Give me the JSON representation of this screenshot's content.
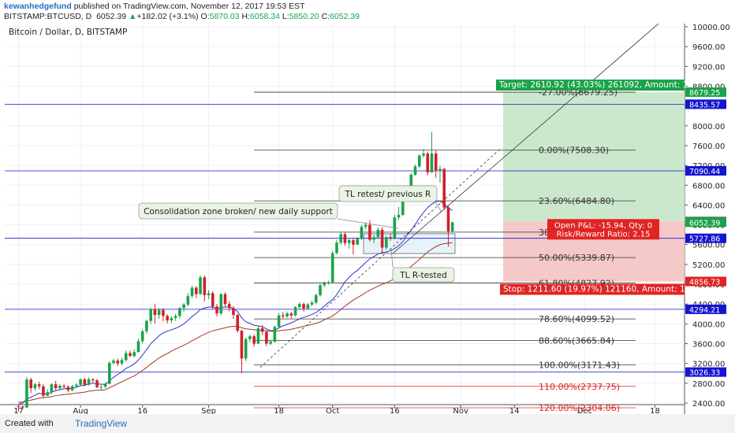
{
  "header": {
    "author": "kewanhedgefund",
    "published": "published on TradingView.com, November 12, 2017 19:53 EST",
    "symbol": "BITSTAMP:BTCUSD, D",
    "last": "6052.39",
    "change_arrow": "▲",
    "change": "+182.02 (+3.1%)",
    "o_label": "O:",
    "o": "5870.03",
    "h_label": "H:",
    "h": "6058.34",
    "l_label": "L:",
    "l": "5850.20",
    "c_label": "C:",
    "c": "6052.39"
  },
  "footer": {
    "created_with": "Created with",
    "brand": "TradingView"
  },
  "chart_data": {
    "type": "candlestick",
    "title": "Bitcoin / Dollar, D, BITSTAMP",
    "y_axis": {
      "min": 2200,
      "max": 10200,
      "position": "right",
      "ticks": [
        "10000.00",
        "9600.00",
        "9200.00",
        "8800.00",
        "8400.00",
        "8000.00",
        "7600.00",
        "7200.00",
        "6800.00",
        "6400.00",
        "6000.00",
        "5600.00",
        "5200.00",
        "4800.00",
        "4400.00",
        "4000.00",
        "3600.00",
        "3200.00",
        "2800.00",
        "2400.00"
      ],
      "tick_values": [
        10000,
        9600,
        9200,
        8800,
        8400,
        8000,
        7600,
        7200,
        6800,
        6400,
        6000,
        5600,
        5200,
        4800,
        4400,
        4000,
        3600,
        3200,
        2800,
        2400
      ]
    },
    "x_axis": {
      "labels": [
        "17",
        "Aug",
        "16",
        "Sep",
        "18",
        "Oct",
        "16",
        "Nov",
        "14",
        "Dec",
        "18"
      ],
      "dates": [
        "2017-07-17",
        "2017-08-01",
        "2017-08-16",
        "2017-09-01",
        "2017-09-18",
        "2017-10-01",
        "2017-10-16",
        "2017-11-01",
        "2017-11-14",
        "2017-12-01",
        "2017-12-18"
      ]
    },
    "horizontal_levels": [
      {
        "value": 8435.57,
        "label": "8435.57",
        "color": "#1515d0"
      },
      {
        "value": 7090.44,
        "label": "7090.44",
        "color": "#1515d0"
      },
      {
        "value": 5727.86,
        "label": "5727.86",
        "color": "#1515d0"
      },
      {
        "value": 4294.21,
        "label": "4294.21",
        "color": "#1515d0"
      },
      {
        "value": 3026.33,
        "label": "3026.33",
        "color": "#1515d0"
      }
    ],
    "price_tags": [
      {
        "value": 8679.25,
        "label": "8679.25",
        "color": "#1aa34a"
      },
      {
        "value": 6068.33,
        "label": "6068.33",
        "color": "#666666"
      },
      {
        "value": 6052.39,
        "label": "6052.39",
        "color": "#1aa34a"
      },
      {
        "value": 4856.73,
        "label": "4856.73",
        "color": "#e02424"
      }
    ],
    "fibonacci": [
      {
        "value": 8679.25,
        "label": "-27.00%(8679.25)",
        "color": "#333333"
      },
      {
        "value": 7508.3,
        "label": "0.00%(7508.30)",
        "color": "#333333"
      },
      {
        "value": 6484.8,
        "label": "23.60%(6484.80)",
        "color": "#333333"
      },
      {
        "value": 5851.82,
        "label": "38.20%(5851.82)",
        "color": "#333333"
      },
      {
        "value": 5339.87,
        "label": "50.00%(5339.87)",
        "color": "#333333"
      },
      {
        "value": 4827.92,
        "label": "61.80%(4827.92)",
        "color": "#333333"
      },
      {
        "value": 4099.52,
        "label": "78.60%(4099.52)",
        "color": "#333333"
      },
      {
        "value": 3665.84,
        "label": "88.60%(3665.84)",
        "color": "#333333"
      },
      {
        "value": 3171.43,
        "label": "100.00%(3171.43)",
        "color": "#333333"
      },
      {
        "value": 2737.75,
        "label": "110.00%(2737.75)",
        "color": "#e02424"
      },
      {
        "value": 2304.06,
        "label": "120.00%(2304.06)",
        "color": "#e02424"
      }
    ],
    "position": {
      "entry": 6068.33,
      "target": 8679.25,
      "stop": 4856.73,
      "target_label": "Target: 2610.92 (43.03%) 261092, Amount: 1",
      "pnl_label": "Open P&L: -15.94, Qty: 0",
      "rr_label": "Risk/Reward Ratio: 2.15",
      "stop_label": "Stop: 1211.60 (19.97%) 121160, Amount: 10"
    },
    "annotations": [
      {
        "text": "Consolidation zone broken/ new daily support"
      },
      {
        "text": "TL retest/ previous R"
      },
      {
        "text": "TL R-tested"
      }
    ],
    "colors": {
      "up": "#1aa34a",
      "down": "#d0202a",
      "ema_fast": "#2b33c4",
      "ema_slow": "#a33a1a"
    },
    "candles": [
      [
        2335,
        2330,
        2350,
        2230
      ],
      [
        2330,
        2310,
        2345,
        2270
      ],
      [
        2310,
        2875,
        2930,
        2300
      ],
      [
        2875,
        2700,
        2910,
        2600
      ],
      [
        2700,
        2780,
        2810,
        2650
      ],
      [
        2780,
        2740,
        2830,
        2680
      ],
      [
        2740,
        2550,
        2780,
        2500
      ],
      [
        2550,
        2620,
        2680,
        2540
      ],
      [
        2620,
        2780,
        2800,
        2580
      ],
      [
        2780,
        2700,
        2850,
        2650
      ],
      [
        2700,
        2750,
        2780,
        2670
      ],
      [
        2750,
        2730,
        2790,
        2690
      ],
      [
        2730,
        2660,
        2760,
        2620
      ],
      [
        2660,
        2740,
        2770,
        2640
      ],
      [
        2740,
        2770,
        2800,
        2710
      ],
      [
        2770,
        2880,
        2900,
        2740
      ],
      [
        2880,
        2770,
        2910,
        2740
      ],
      [
        2770,
        2880,
        2920,
        2750
      ],
      [
        2880,
        2860,
        2900,
        2810
      ],
      [
        2860,
        2720,
        2890,
        2700
      ],
      [
        2720,
        2730,
        2760,
        2660
      ],
      [
        2730,
        2790,
        2810,
        2700
      ],
      [
        2790,
        3210,
        3250,
        2780
      ],
      [
        3210,
        3260,
        3300,
        3180
      ],
      [
        3260,
        3200,
        3300,
        3150
      ],
      [
        3200,
        3270,
        3310,
        3160
      ],
      [
        3270,
        3410,
        3460,
        3240
      ],
      [
        3410,
        3350,
        3460,
        3330
      ],
      [
        3350,
        3430,
        3480,
        3320
      ],
      [
        3430,
        3650,
        3700,
        3420
      ],
      [
        3650,
        3850,
        3890,
        3600
      ],
      [
        3850,
        4060,
        4090,
        3800
      ],
      [
        4060,
        4300,
        4330,
        4000
      ],
      [
        4300,
        4180,
        4400,
        4000
      ],
      [
        4180,
        4280,
        4320,
        4100
      ],
      [
        4280,
        4160,
        4320,
        4050
      ],
      [
        4160,
        4070,
        4200,
        4010
      ],
      [
        4070,
        4120,
        4160,
        4020
      ],
      [
        4120,
        4160,
        4200,
        4060
      ],
      [
        4160,
        4320,
        4340,
        4110
      ],
      [
        4320,
        4390,
        4420,
        4250
      ],
      [
        4390,
        4560,
        4620,
        4350
      ],
      [
        4560,
        4730,
        4770,
        4520
      ],
      [
        4730,
        4600,
        4760,
        4520
      ],
      [
        4600,
        4940,
        4980,
        4580
      ],
      [
        4940,
        4580,
        4980,
        4450
      ],
      [
        4580,
        4620,
        4680,
        4500
      ],
      [
        4620,
        4350,
        4660,
        4300
      ],
      [
        4350,
        4210,
        4400,
        4150
      ],
      [
        4210,
        4600,
        4620,
        4180
      ],
      [
        4600,
        4400,
        4640,
        4350
      ],
      [
        4400,
        4320,
        4460,
        4250
      ],
      [
        4320,
        4180,
        4360,
        4100
      ],
      [
        4180,
        3860,
        4200,
        3820
      ],
      [
        3860,
        3300,
        3880,
        3000
      ],
      [
        3300,
        3690,
        3730,
        3250
      ],
      [
        3690,
        3750,
        3780,
        3630
      ],
      [
        3750,
        3600,
        3790,
        3540
      ],
      [
        3600,
        3910,
        3960,
        3590
      ],
      [
        3910,
        3840,
        3980,
        3780
      ],
      [
        3840,
        3600,
        3870,
        3550
      ],
      [
        3600,
        3640,
        3680,
        3570
      ],
      [
        3640,
        3940,
        3960,
        3620
      ],
      [
        3940,
        4170,
        4220,
        3920
      ],
      [
        4170,
        4150,
        4240,
        4100
      ],
      [
        4150,
        4210,
        4250,
        4120
      ],
      [
        4210,
        4170,
        4240,
        4110
      ],
      [
        4170,
        4340,
        4360,
        4150
      ],
      [
        4340,
        4400,
        4440,
        4300
      ],
      [
        4400,
        4310,
        4430,
        4250
      ],
      [
        4310,
        4390,
        4420,
        4290
      ],
      [
        4390,
        4430,
        4470,
        4360
      ],
      [
        4430,
        4580,
        4610,
        4400
      ],
      [
        4580,
        4780,
        4810,
        4550
      ],
      [
        4780,
        4820,
        4860,
        4740
      ],
      [
        4820,
        4840,
        4870,
        4790
      ],
      [
        4840,
        5430,
        5470,
        4830
      ],
      [
        5430,
        5640,
        5700,
        5400
      ],
      [
        5640,
        5810,
        5850,
        5600
      ],
      [
        5810,
        5630,
        5860,
        5580
      ],
      [
        5630,
        5690,
        5740,
        5520
      ],
      [
        5690,
        5600,
        5740,
        5400
      ],
      [
        5600,
        5720,
        5750,
        5590
      ],
      [
        5720,
        5960,
        6000,
        5690
      ],
      [
        5960,
        6000,
        6050,
        5900
      ],
      [
        6000,
        5700,
        6100,
        5660
      ],
      [
        5700,
        5750,
        5800,
        5630
      ],
      [
        5750,
        5900,
        5950,
        5720
      ],
      [
        5900,
        5540,
        5950,
        5420
      ],
      [
        5540,
        5750,
        5780,
        5500
      ],
      [
        5750,
        5730,
        5830,
        5680
      ],
      [
        5730,
        6150,
        6200,
        5700
      ],
      [
        6150,
        6200,
        6360,
        6100
      ],
      [
        6200,
        6560,
        6610,
        6180
      ],
      [
        6560,
        6740,
        6780,
        6530
      ],
      [
        6740,
        7010,
        7050,
        6700
      ],
      [
        7010,
        7180,
        7220,
        6990
      ],
      [
        7180,
        7400,
        7420,
        7140
      ],
      [
        7400,
        7440,
        7530,
        7360
      ],
      [
        7440,
        7060,
        7480,
        7000
      ],
      [
        7060,
        7440,
        7880,
        7050
      ],
      [
        7440,
        7100,
        7500,
        6950
      ],
      [
        7100,
        7130,
        7200,
        6850
      ],
      [
        7130,
        6350,
        7150,
        6300
      ],
      [
        6350,
        5870,
        6400,
        5560
      ],
      [
        5870,
        6052,
        6058,
        5850
      ]
    ],
    "ema_fast": [
      2380,
      2400,
      2480,
      2520,
      2560,
      2600,
      2580,
      2580,
      2620,
      2650,
      2670,
      2690,
      2690,
      2700,
      2720,
      2750,
      2760,
      2790,
      2800,
      2790,
      2780,
      2780,
      2850,
      2920,
      2980,
      3030,
      3100,
      3140,
      3190,
      3270,
      3370,
      3480,
      3600,
      3680,
      3760,
      3820,
      3850,
      3880,
      3910,
      3950,
      4000,
      4070,
      4150,
      4210,
      4290,
      4320,
      4340,
      4340,
      4310,
      4330,
      4340,
      4340,
      4310,
      4250,
      4120,
      4040,
      4010,
      3970,
      3960,
      3940,
      3900,
      3860,
      3870,
      3920,
      3960,
      3990,
      4020,
      4060,
      4100,
      4130,
      4160,
      4190,
      4230,
      4290,
      4360,
      4430,
      4490,
      4590,
      4720,
      4850,
      4940,
      5020,
      5080,
      5160,
      5240,
      5310,
      5360,
      5410,
      5440,
      5450,
      5480,
      5520,
      5580,
      5660,
      5790,
      5890,
      6010,
      6140,
      6250,
      6350,
      6420,
      6470,
      6480,
      6420,
      6340,
      6290
    ],
    "ema_slow": [
      2420,
      2420,
      2440,
      2460,
      2480,
      2500,
      2510,
      2520,
      2530,
      2550,
      2560,
      2570,
      2580,
      2590,
      2600,
      2610,
      2620,
      2640,
      2650,
      2660,
      2660,
      2670,
      2710,
      2750,
      2790,
      2830,
      2870,
      2910,
      2950,
      3000,
      3060,
      3120,
      3190,
      3250,
      3310,
      3360,
      3400,
      3450,
      3490,
      3530,
      3570,
      3610,
      3660,
      3700,
      3750,
      3790,
      3830,
      3860,
      3880,
      3900,
      3920,
      3940,
      3950,
      3950,
      3920,
      3900,
      3890,
      3880,
      3870,
      3870,
      3860,
      3850,
      3850,
      3860,
      3870,
      3880,
      3890,
      3910,
      3930,
      3950,
      3970,
      3990,
      4010,
      4040,
      4080,
      4120,
      4160,
      4220,
      4290,
      4360,
      4420,
      4480,
      4530,
      4580,
      4630,
      4680,
      4720,
      4760,
      4800,
      4830,
      4870,
      4910,
      4960,
      5020,
      5090,
      5160,
      5230,
      5300,
      5380,
      5450,
      5510,
      5560,
      5600,
      5620,
      5630,
      5640
    ]
  }
}
